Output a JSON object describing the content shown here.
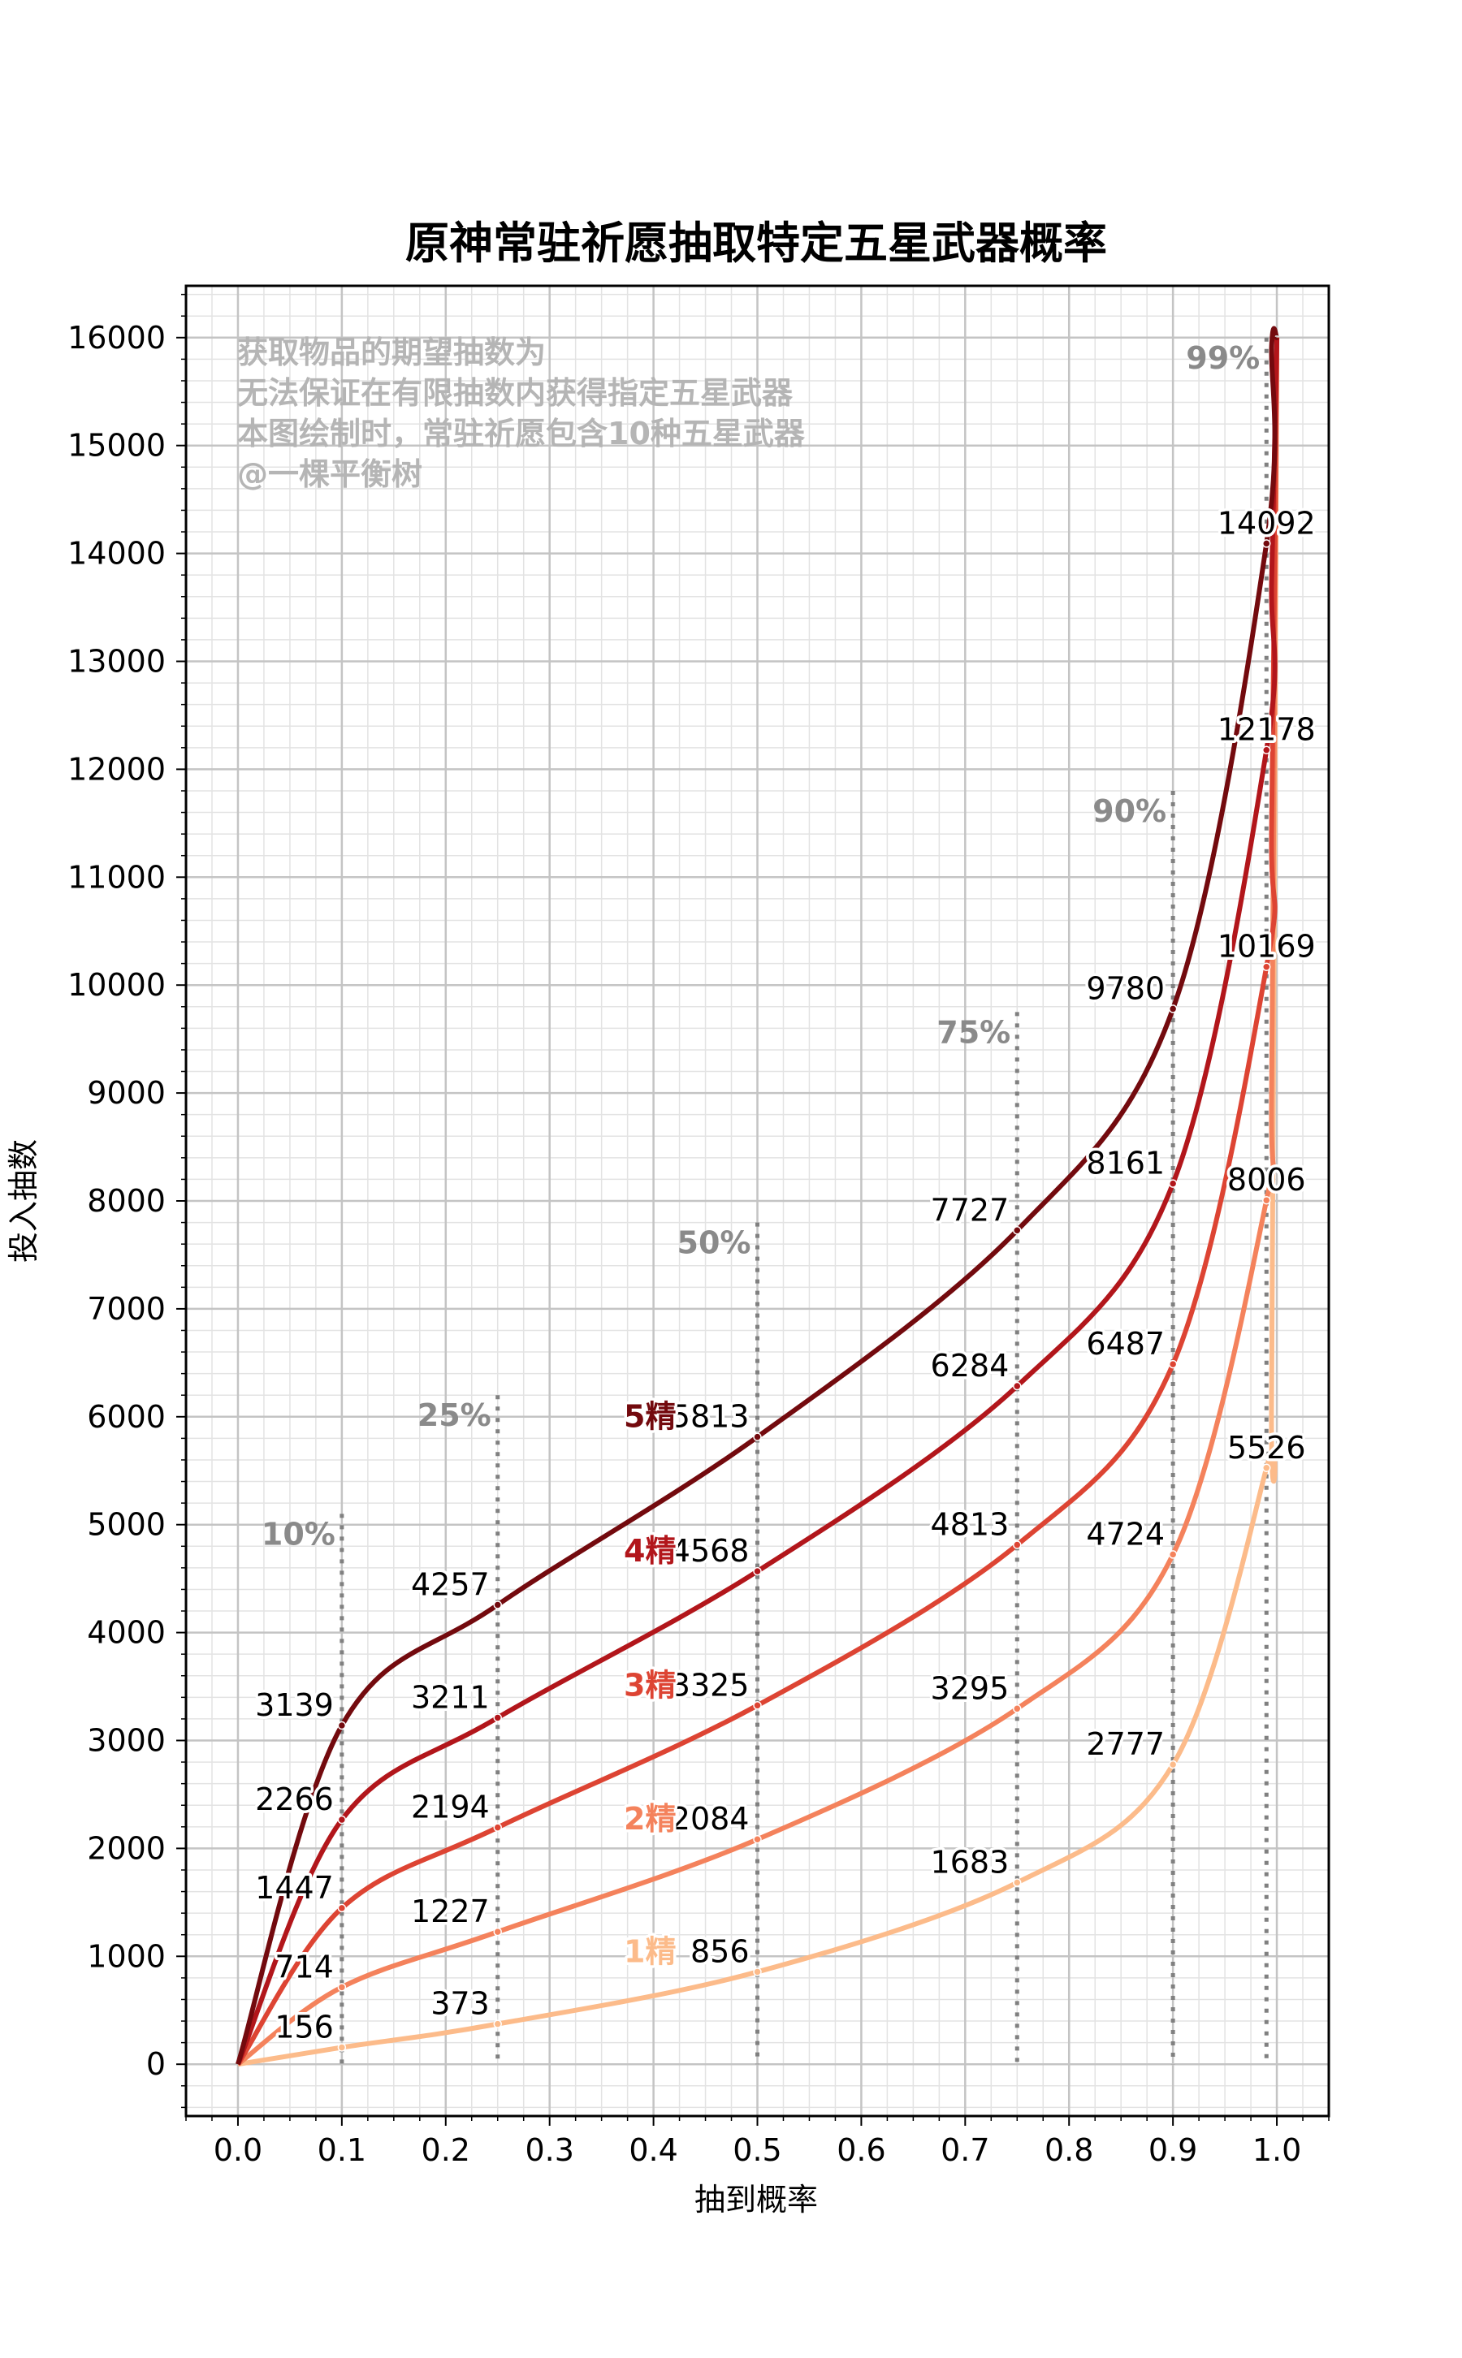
{
  "chart_data": {
    "type": "line",
    "title": "原神常驻祈愿抽取特定五星武器概率",
    "xlabel": "抽到概率",
    "ylabel": "投入抽数",
    "xlim": [
      -0.05,
      1.05
    ],
    "ylim": [
      -480,
      16480
    ],
    "x_ticks": [
      "0.0",
      "0.1",
      "0.2",
      "0.3",
      "0.4",
      "0.5",
      "0.6",
      "0.7",
      "0.8",
      "0.9",
      "1.0"
    ],
    "y_ticks": [
      "0",
      "1000",
      "2000",
      "3000",
      "4000",
      "5000",
      "6000",
      "7000",
      "8000",
      "9000",
      "10000",
      "11000",
      "12000",
      "13000",
      "14000",
      "15000",
      "16000"
    ],
    "grid": true,
    "notes": [
      "获取物品的期望抽数为",
      "无法保证在有限抽数内获得指定五星武器",
      "本图绘制时，常驻祈愿包含10种五星武器",
      "@一棵平衡树"
    ],
    "reference_lines": [
      {
        "x": 0.1,
        "label": "10%",
        "top": 5100
      },
      {
        "x": 0.25,
        "label": "25%",
        "top": 6200
      },
      {
        "x": 0.5,
        "label": "50%",
        "top": 7800
      },
      {
        "x": 0.75,
        "label": "75%",
        "top": 9750
      },
      {
        "x": 0.9,
        "label": "90%",
        "top": 11800
      },
      {
        "x": 0.99,
        "label": "99%",
        "top": 16000
      }
    ],
    "x": [
      0.1,
      0.25,
      0.5,
      0.75,
      0.9,
      0.99
    ],
    "series": [
      {
        "tag": "1精",
        "color": "#fcbb8a",
        "values": [
          156,
          373,
          856,
          1683,
          2777,
          5526
        ],
        "labels": [
          "156",
          "373",
          "856",
          "1683",
          "2777",
          "5526"
        ]
      },
      {
        "tag": "2精",
        "color": "#f4825c",
        "values": [
          714,
          1227,
          2084,
          3295,
          4724,
          8006
        ],
        "labels": [
          "714",
          "1227",
          "2084",
          "3295",
          "4724",
          "8006"
        ]
      },
      {
        "tag": "3精",
        "color": "#dd4433",
        "values": [
          1447,
          2194,
          3325,
          4813,
          6487,
          10169
        ],
        "labels": [
          "1447",
          "2194",
          "3325",
          "4813",
          "6487",
          "10169"
        ]
      },
      {
        "tag": "4精",
        "color": "#b2161b",
        "values": [
          2266,
          3211,
          4568,
          6284,
          8161,
          12178
        ],
        "labels": [
          "2266",
          "3211",
          "4568",
          "6284",
          "8161",
          "12178"
        ]
      },
      {
        "tag": "5精",
        "color": "#730a0e",
        "values": [
          3139,
          4257,
          5813,
          7727,
          9780,
          14092
        ],
        "labels": [
          "3139",
          "4257",
          "5813",
          "7727",
          "9780",
          "14092"
        ]
      }
    ]
  }
}
